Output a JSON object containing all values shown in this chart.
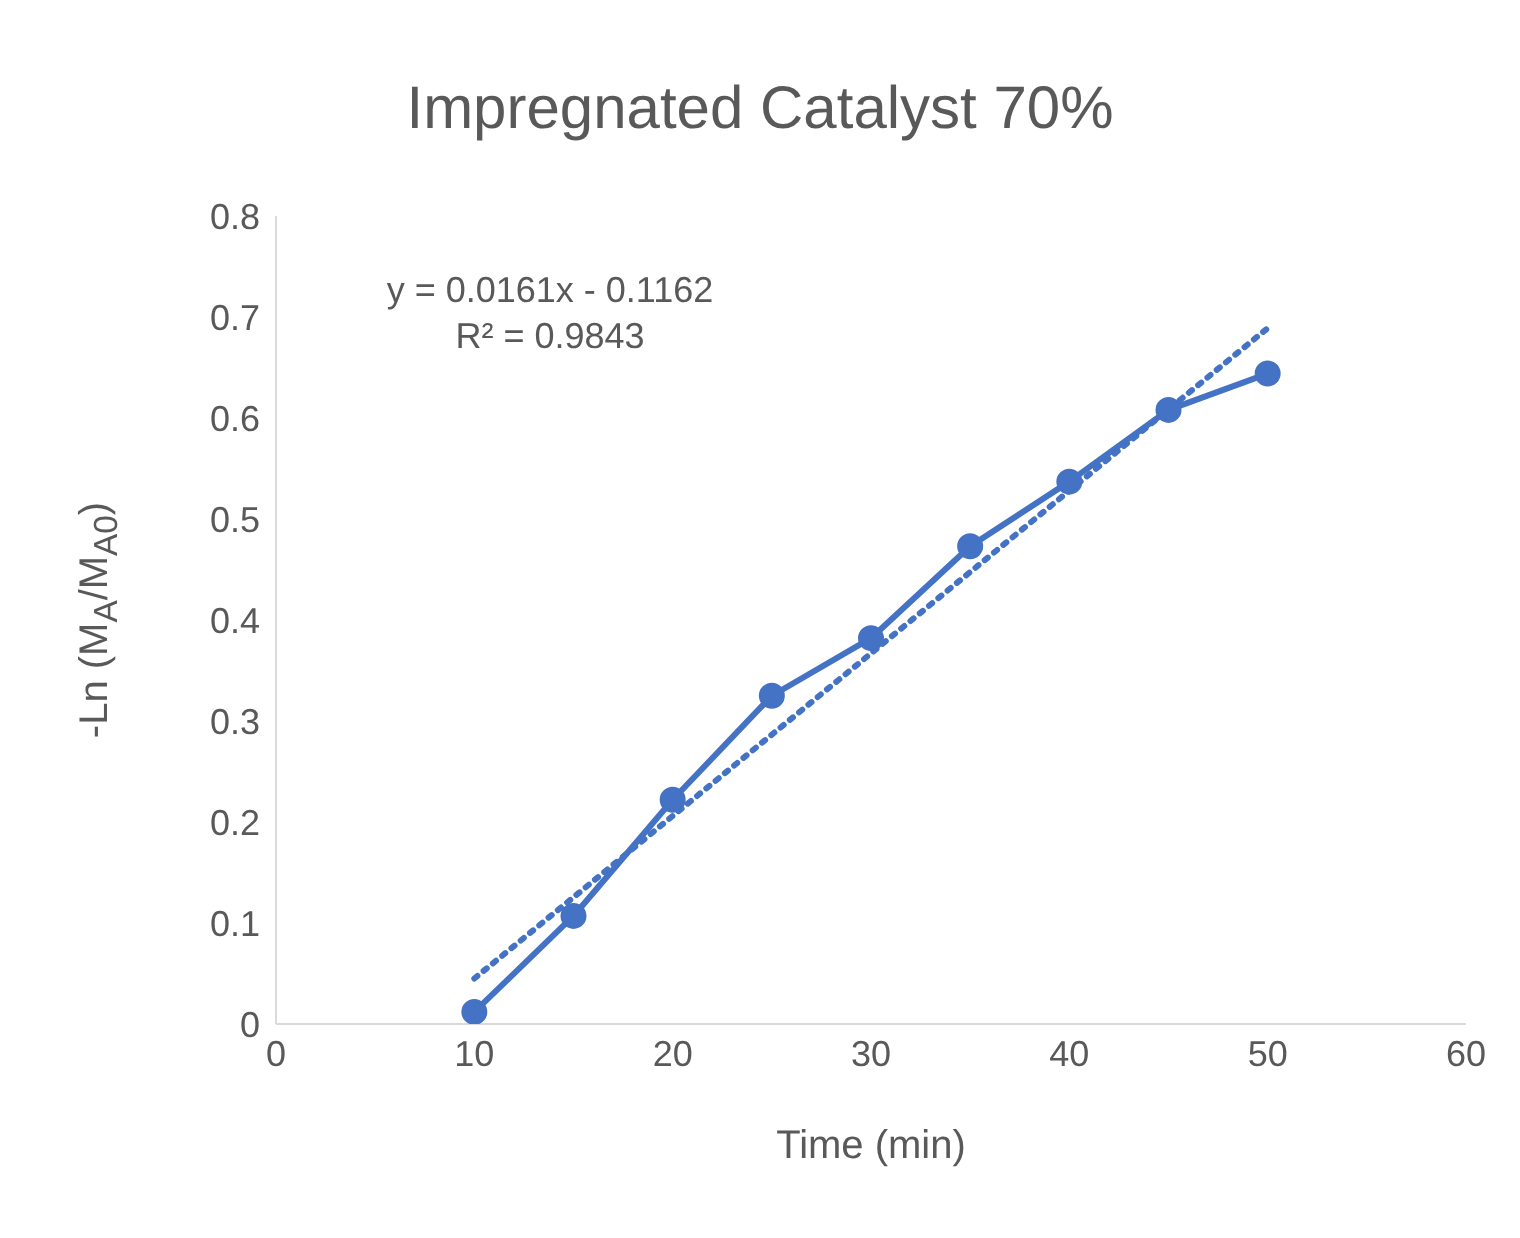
{
  "chart_data": {
    "type": "line",
    "title": "Impregnated Catalyst 70%",
    "xlabel": "Time (min)",
    "ylabel": "-Ln (M$_{A}$/M$_{A0}$)",
    "annotations": [
      "y = 0.0161x - 0.1162",
      "R² = 0.9843"
    ],
    "x": [
      10,
      15,
      20,
      25,
      30,
      35,
      40,
      45,
      50
    ],
    "series": [
      {
        "color": "#4472c4",
        "marker": "circle",
        "line_style": "solid",
        "values": [
          0.012,
          0.107,
          0.222,
          0.325,
          0.382,
          0.473,
          0.537,
          0.608,
          0.644
        ]
      },
      {
        "type": "line",
        "color": "#4472c4",
        "marker": "none",
        "line_style": "dotted",
        "x": [
          10,
          50
        ],
        "values": [
          0.045,
          0.689
        ]
      }
    ],
    "xlim": [
      0,
      60
    ],
    "xticks": [
      0,
      10,
      20,
      30,
      40,
      50,
      60
    ],
    "ylim": [
      0,
      0.8
    ],
    "yticks": [
      0,
      0.1,
      0.2,
      0.3,
      0.4,
      0.5,
      0.6,
      0.7,
      0.8
    ]
  }
}
